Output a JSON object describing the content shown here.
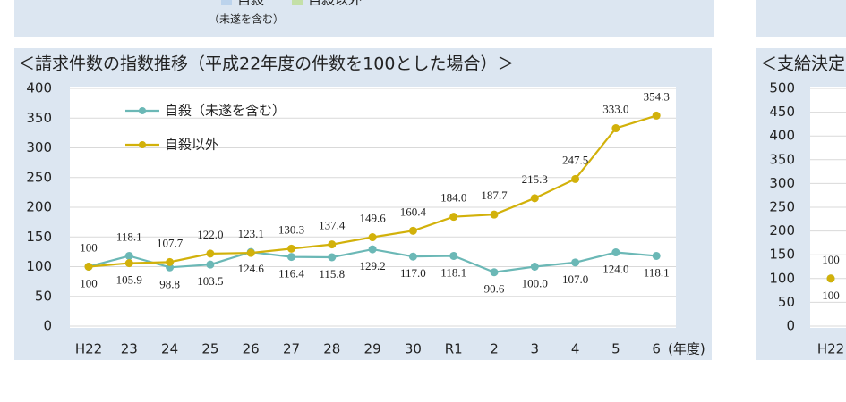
{
  "header": {
    "items": [
      "自殺",
      "自殺以外"
    ],
    "note": "（未遂を含む）"
  },
  "chart_data": [
    {
      "type": "line",
      "title": "＜請求件数の指数推移（平成22年度の件数を100とした場合）＞",
      "x_unit": "(年度)",
      "categories": [
        "H22",
        "23",
        "24",
        "25",
        "26",
        "27",
        "28",
        "29",
        "30",
        "R1",
        "2",
        "3",
        "4",
        "5",
        "6"
      ],
      "ylim": [
        0,
        400
      ],
      "yticks": [
        0,
        50,
        100,
        150,
        200,
        250,
        300,
        350,
        400
      ],
      "grid": true,
      "series": [
        {
          "name": "自殺（未遂を含む）",
          "color": "#6bb8b6",
          "label_color": "#2a9a68",
          "values": [
            100,
            118.1,
            98.8,
            103.5,
            124.6,
            116.4,
            115.8,
            129.2,
            117.0,
            118.1,
            90.6,
            100.0,
            107.0,
            124.0,
            118.1
          ],
          "value_labels": [
            "100",
            "118.1",
            "98.8",
            "103.5",
            "124.6",
            "116.4",
            "115.8",
            "129.2",
            "117.0",
            "118.1",
            "90.6",
            "100.0",
            "107.0",
            "124.0",
            "118.1"
          ]
        },
        {
          "name": "自殺以外",
          "color": "#d2b10a",
          "label_color": "#eaa23a",
          "values": [
            100,
            105.9,
            107.7,
            122.0,
            123.1,
            130.3,
            137.4,
            149.6,
            160.4,
            184.0,
            187.7,
            215.3,
            247.5,
            333.0,
            354.3
          ],
          "value_labels": [
            "100",
            "105.9",
            "107.7",
            "122.0",
            "123.1",
            "130.3",
            "137.4",
            "149.6",
            "160.4",
            "184.0",
            "187.7",
            "215.3",
            "247.5",
            "333.0",
            "354.3"
          ]
        }
      ]
    },
    {
      "type": "line",
      "title": "＜支給決定",
      "categories": [
        "H22"
      ],
      "ylim": [
        0,
        500
      ],
      "yticks": [
        0,
        50,
        100,
        150,
        200,
        250,
        300,
        350,
        400,
        450,
        500
      ],
      "grid": true,
      "series": [
        {
          "color": "#6bb8b6",
          "label_color": "#2a9a68",
          "values": [
            100
          ],
          "value_labels": [
            "100"
          ]
        },
        {
          "color": "#d2b10a",
          "label_color": "#eaa23a",
          "values": [
            100
          ],
          "value_labels": [
            "100"
          ]
        }
      ]
    }
  ]
}
